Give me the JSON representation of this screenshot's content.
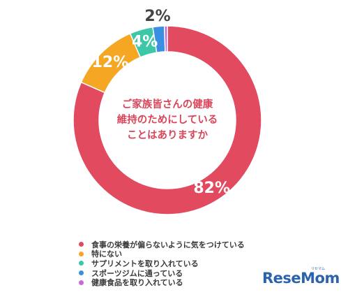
{
  "chart_data": {
    "type": "pie",
    "title": "",
    "center_text": [
      "ご家族皆さんの健康",
      "維持のためにしている",
      "ことはありますか"
    ],
    "categories": [
      "食事の栄養が偏らないように気をつけている",
      "特にない",
      "サプリメントを取り入れている",
      "スポーツジムに通っている",
      "健康食品を取り入れている"
    ],
    "values": [
      82,
      12,
      4,
      2,
      0.5
    ],
    "labels": [
      "82%",
      "12%",
      "4%",
      "2%",
      ""
    ],
    "colors": [
      "#e24a5f",
      "#f5a623",
      "#3cc8a7",
      "#3b8fe0",
      "#c76bd4"
    ],
    "legend_position": "bottom-left"
  },
  "logo": {
    "text": "ReseMom",
    "sub": "リセマム"
  }
}
